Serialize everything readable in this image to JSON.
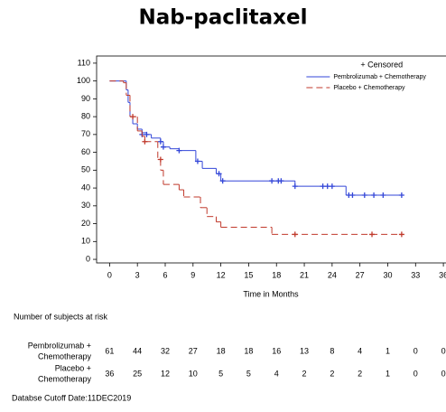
{
  "chart_data": {
    "type": "km",
    "title": "Nab-paclitaxel",
    "x_label": "Time in Months",
    "legend_title": "+ Censored",
    "legend_position": "top-right",
    "xlim": [
      -1.4,
      37
    ],
    "ylim": [
      -2,
      114
    ],
    "xticks": [
      0,
      3,
      6,
      9,
      12,
      15,
      18,
      21,
      24,
      27,
      30,
      33,
      36
    ],
    "yticks": [
      0,
      10,
      20,
      30,
      40,
      50,
      60,
      70,
      80,
      90,
      100,
      110
    ],
    "series": [
      {
        "name": "Pembrolizumab + Chemotherapy",
        "color": "#3346d8",
        "dash": false,
        "x": [
          0,
          1.8,
          2,
          2.2,
          2.5,
          3,
          3.5,
          4,
          4.5,
          5.5,
          5.8,
          6.5,
          7.5,
          9.3,
          10,
          11.5,
          12,
          20,
          25.5,
          31.5
        ],
        "values": [
          100,
          95,
          88,
          80,
          76,
          73,
          71,
          70,
          68,
          66,
          63,
          62,
          61,
          55,
          51,
          48,
          44,
          41,
          36,
          36
        ],
        "censored": {
          "x": [
            3.5,
            4,
            5.5,
            5.8,
            7.5,
            9.5,
            11.8,
            12.2,
            17.5,
            18.2,
            18.5,
            20,
            23,
            23.5,
            24,
            25.8,
            26.2,
            27.5,
            28.5,
            29.5,
            31.5
          ],
          "values": [
            70,
            70,
            66,
            63,
            61,
            55,
            48,
            44,
            44,
            44,
            44,
            41,
            41,
            41,
            41,
            36,
            36,
            36,
            36,
            36,
            36
          ]
        }
      },
      {
        "name": "Placebo + Chemotherapy",
        "color": "#c0392b",
        "dash": true,
        "x": [
          0,
          1.5,
          1.8,
          2.2,
          3,
          3.5,
          3.8,
          5.2,
          5.5,
          5.8,
          7.5,
          8,
          9.8,
          10.5,
          11.5,
          12,
          17.5,
          31.5
        ],
        "values": [
          100,
          99,
          92,
          80,
          72,
          69,
          66,
          56,
          50,
          42,
          39,
          35,
          29,
          24,
          21,
          18,
          14,
          14
        ],
        "censored": {
          "x": [
            2.5,
            3.8,
            5.5,
            20,
            28.3,
            31.5
          ],
          "values": [
            80,
            66,
            56,
            14,
            14,
            14
          ]
        }
      }
    ],
    "risk_table": {
      "title": "Number of subjects at risk",
      "rows": [
        {
          "label": [
            "Pembrolizumab +",
            "Chemotherapy"
          ],
          "counts": [
            61,
            44,
            32,
            27,
            18,
            18,
            16,
            13,
            8,
            4,
            1,
            0,
            0
          ]
        },
        {
          "label": [
            "Placebo +",
            "Chemotherapy"
          ],
          "counts": [
            36,
            25,
            12,
            10,
            5,
            5,
            4,
            2,
            2,
            2,
            1,
            0,
            0
          ]
        }
      ]
    },
    "footnote": "Databse Cutoff Date:11DEC2019"
  }
}
